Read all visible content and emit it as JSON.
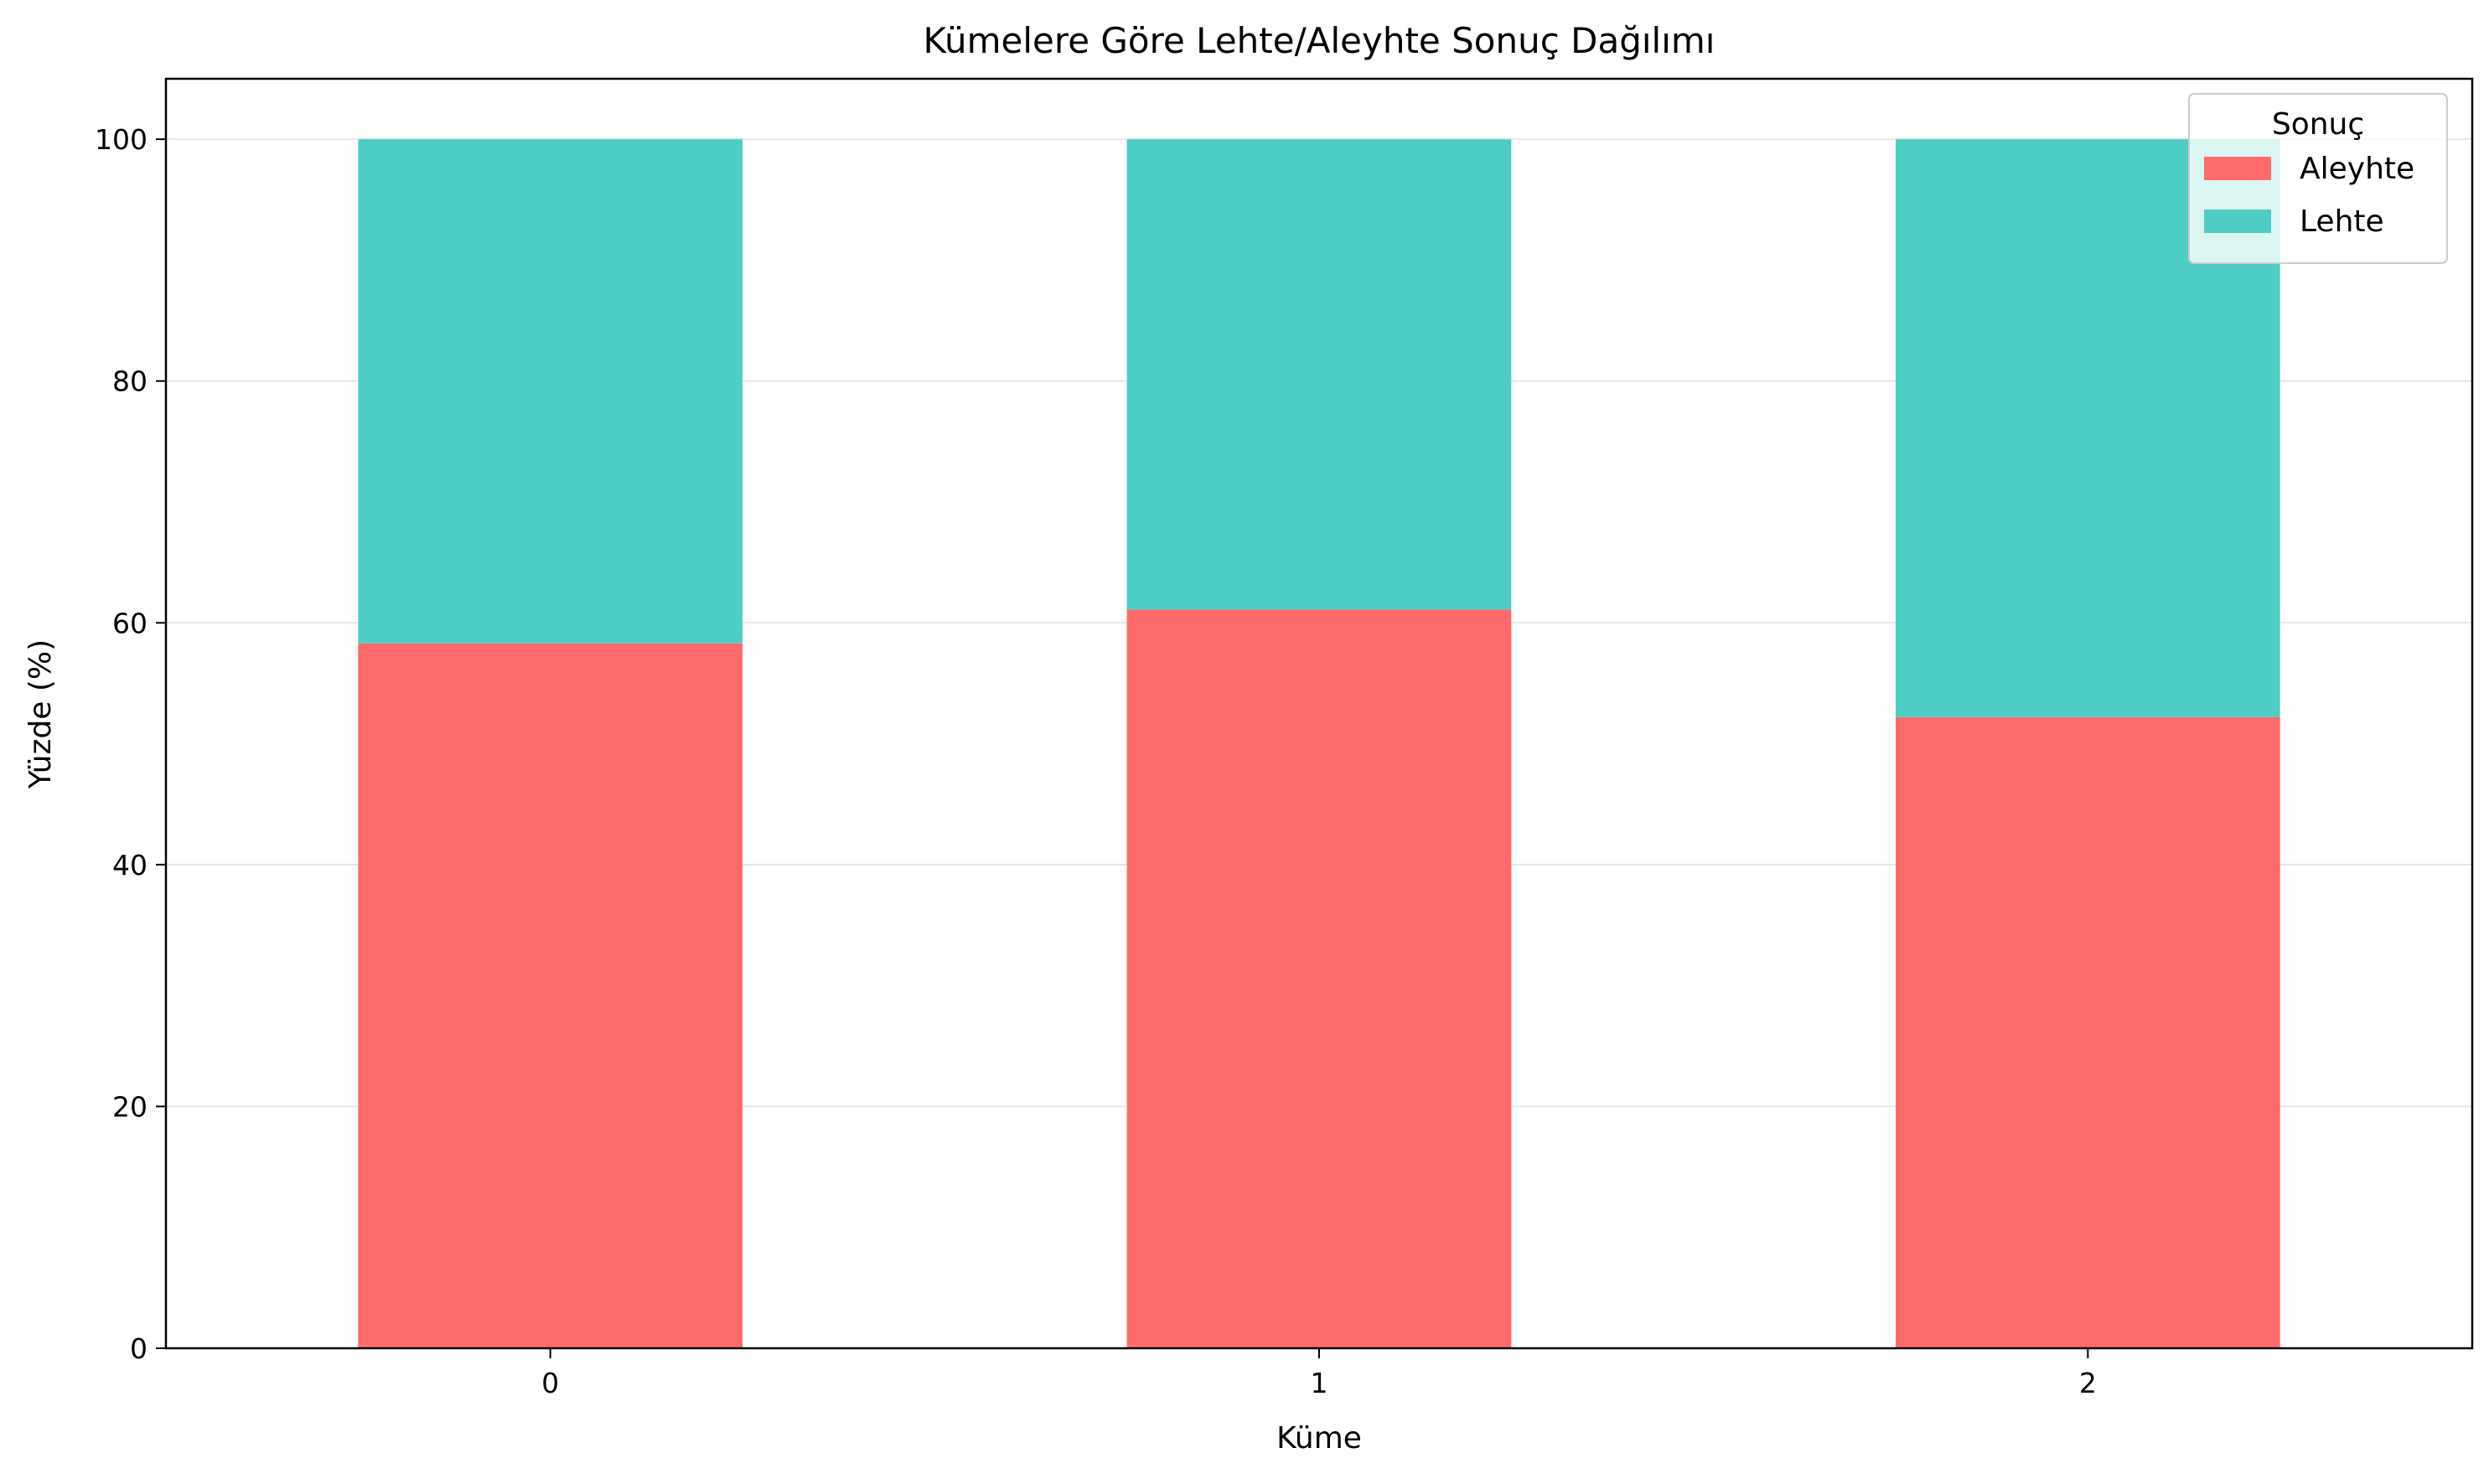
{
  "chart_data": {
    "type": "bar",
    "stacked": true,
    "title": "Kümelere Göre Lehte/Aleyhte Sonuç Dağılımı",
    "xlabel": "Küme",
    "ylabel": "Yüzde (%)",
    "categories": [
      "0",
      "1",
      "2"
    ],
    "series": [
      {
        "name": "Aleyhte",
        "color": "#FF6B6B",
        "values": [
          58.3,
          61.1,
          52.2
        ]
      },
      {
        "name": "Lehte",
        "color": "#4ECDC4",
        "values": [
          41.7,
          38.9,
          47.8
        ]
      }
    ],
    "ylim": [
      0,
      105
    ],
    "yticks": [
      0,
      20,
      40,
      60,
      80,
      100
    ],
    "grid": "y",
    "legend": {
      "title": "Sonuç",
      "placement": "top-right"
    }
  }
}
